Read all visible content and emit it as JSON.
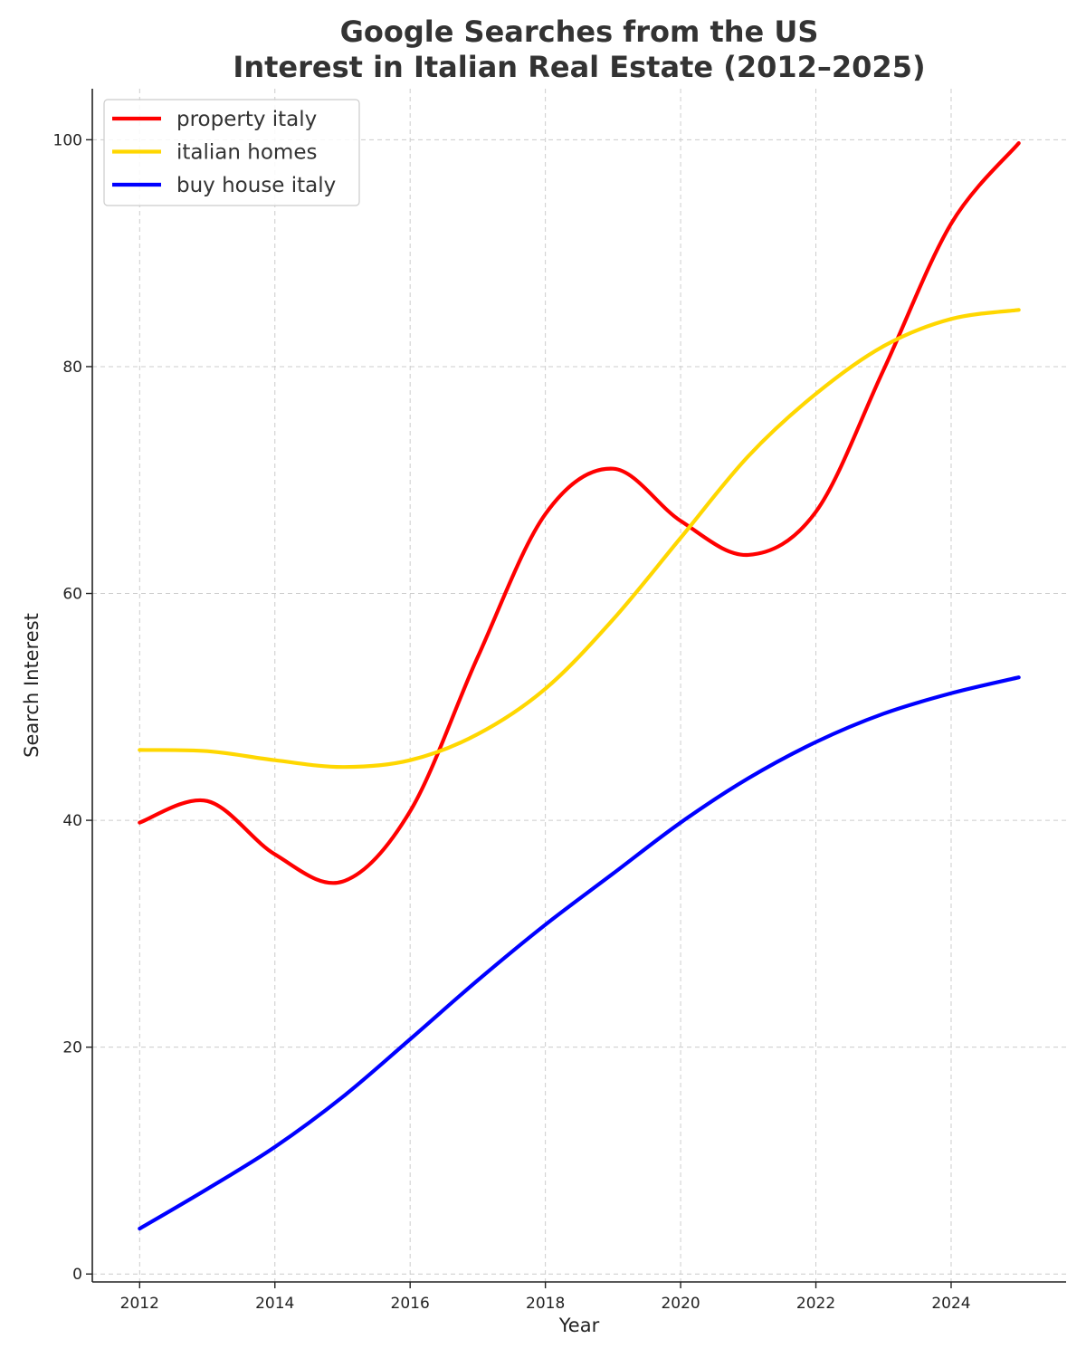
{
  "chart_data": {
    "type": "line",
    "title": "Google Searches from the US",
    "subtitle": "Interest in Italian Real Estate (2012–2025)",
    "xlabel": "Year",
    "ylabel": "Search Interest",
    "xlim": [
      2011.3,
      2025.7
    ],
    "ylim": [
      -0.7,
      104.5
    ],
    "x_ticks": [
      2012,
      2014,
      2016,
      2018,
      2020,
      2022,
      2024
    ],
    "y_ticks": [
      0,
      20,
      40,
      60,
      80,
      100
    ],
    "grid": true,
    "legend_position": "top-left",
    "x": [
      2012,
      2013,
      2014,
      2015,
      2016,
      2017,
      2018,
      2019,
      2020,
      2021,
      2022,
      2023,
      2024,
      2025
    ],
    "series": [
      {
        "name": "property italy",
        "color": "#ff0000",
        "values": [
          39.8,
          41.7,
          37.0,
          34.6,
          40.8,
          54.4,
          67.0,
          71.0,
          66.4,
          63.4,
          67.2,
          79.7,
          92.6,
          99.7
        ]
      },
      {
        "name": "italian homes",
        "color": "#ffd700",
        "values": [
          46.2,
          46.1,
          45.3,
          44.7,
          45.3,
          47.6,
          51.6,
          57.7,
          64.9,
          72.1,
          77.6,
          81.8,
          84.2,
          85.0
        ]
      },
      {
        "name": "buy house italy",
        "color": "#0000ff",
        "values": [
          4.0,
          7.5,
          11.2,
          15.6,
          20.7,
          25.9,
          30.8,
          35.3,
          39.8,
          43.7,
          46.9,
          49.4,
          51.2,
          52.6
        ]
      }
    ]
  }
}
